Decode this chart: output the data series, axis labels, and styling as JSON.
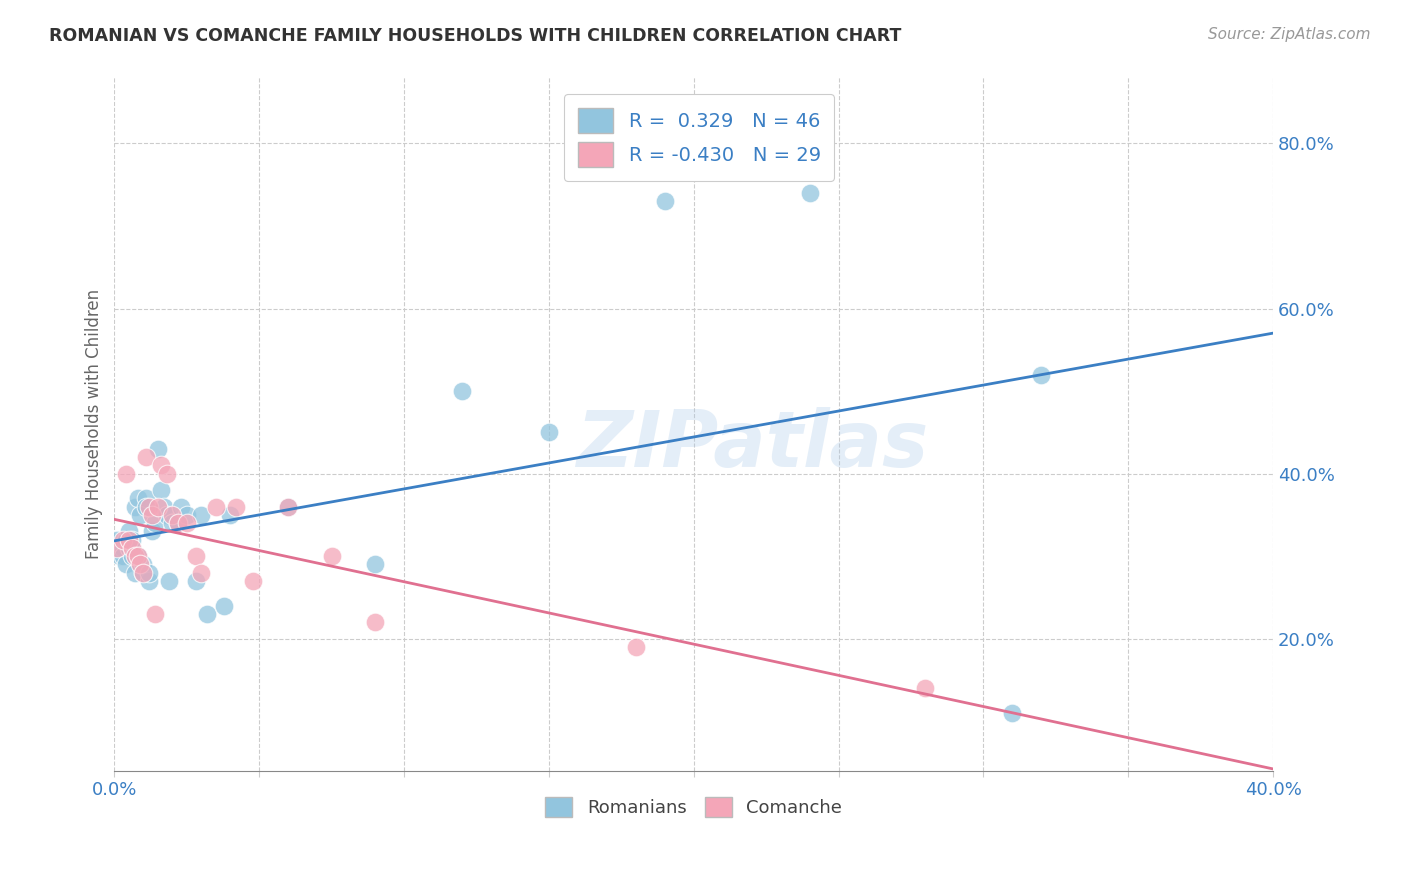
{
  "title": "ROMANIAN VS COMANCHE FAMILY HOUSEHOLDS WITH CHILDREN CORRELATION CHART",
  "source": "Source: ZipAtlas.com",
  "ylabel": "Family Households with Children",
  "y_ticks_right": [
    0.2,
    0.4,
    0.6,
    0.8
  ],
  "y_tick_labels_right": [
    "20.0%",
    "40.0%",
    "60.0%",
    "80.0%"
  ],
  "xlim": [
    0.0,
    0.4
  ],
  "ylim": [
    0.04,
    0.88
  ],
  "watermark": "ZIPatlas",
  "background_color": "#ffffff",
  "grid_color": "#cccccc",
  "blue_color": "#92c5de",
  "pink_color": "#f4a6b8",
  "blue_line_color": "#3b7fc4",
  "pink_line_color": "#e07090",
  "label_color": "#3b7fc4",
  "tick_label_color": "#3b7fc4",
  "romanians_x": [
    0.001,
    0.002,
    0.003,
    0.003,
    0.004,
    0.004,
    0.005,
    0.005,
    0.006,
    0.006,
    0.006,
    0.007,
    0.007,
    0.008,
    0.008,
    0.009,
    0.01,
    0.01,
    0.011,
    0.011,
    0.012,
    0.012,
    0.013,
    0.014,
    0.015,
    0.016,
    0.017,
    0.018,
    0.019,
    0.02,
    0.022,
    0.023,
    0.025,
    0.028,
    0.03,
    0.032,
    0.038,
    0.04,
    0.06,
    0.09,
    0.12,
    0.15,
    0.19,
    0.24,
    0.31,
    0.32
  ],
  "romanians_y": [
    0.32,
    0.3,
    0.31,
    0.3,
    0.32,
    0.29,
    0.33,
    0.31,
    0.31,
    0.3,
    0.32,
    0.36,
    0.28,
    0.37,
    0.3,
    0.35,
    0.29,
    0.28,
    0.37,
    0.36,
    0.27,
    0.28,
    0.33,
    0.34,
    0.43,
    0.38,
    0.36,
    0.35,
    0.27,
    0.34,
    0.34,
    0.36,
    0.35,
    0.27,
    0.35,
    0.23,
    0.24,
    0.35,
    0.36,
    0.29,
    0.5,
    0.45,
    0.73,
    0.74,
    0.11,
    0.52
  ],
  "comanche_x": [
    0.001,
    0.003,
    0.004,
    0.005,
    0.006,
    0.007,
    0.008,
    0.009,
    0.01,
    0.011,
    0.012,
    0.013,
    0.014,
    0.015,
    0.016,
    0.018,
    0.02,
    0.022,
    0.025,
    0.028,
    0.03,
    0.035,
    0.042,
    0.048,
    0.06,
    0.075,
    0.09,
    0.18,
    0.28
  ],
  "comanche_y": [
    0.31,
    0.32,
    0.4,
    0.32,
    0.31,
    0.3,
    0.3,
    0.29,
    0.28,
    0.42,
    0.36,
    0.35,
    0.23,
    0.36,
    0.41,
    0.4,
    0.35,
    0.34,
    0.34,
    0.3,
    0.28,
    0.36,
    0.36,
    0.27,
    0.36,
    0.3,
    0.22,
    0.19,
    0.14
  ],
  "romanian_R": 0.329,
  "romanian_N": 46,
  "comanche_R": -0.43,
  "comanche_N": 29,
  "bottom_labels": [
    "Romanians",
    "Comanche"
  ],
  "x_tick_positions": [
    0.0,
    0.05,
    0.1,
    0.15,
    0.2,
    0.25,
    0.3,
    0.35,
    0.4
  ]
}
